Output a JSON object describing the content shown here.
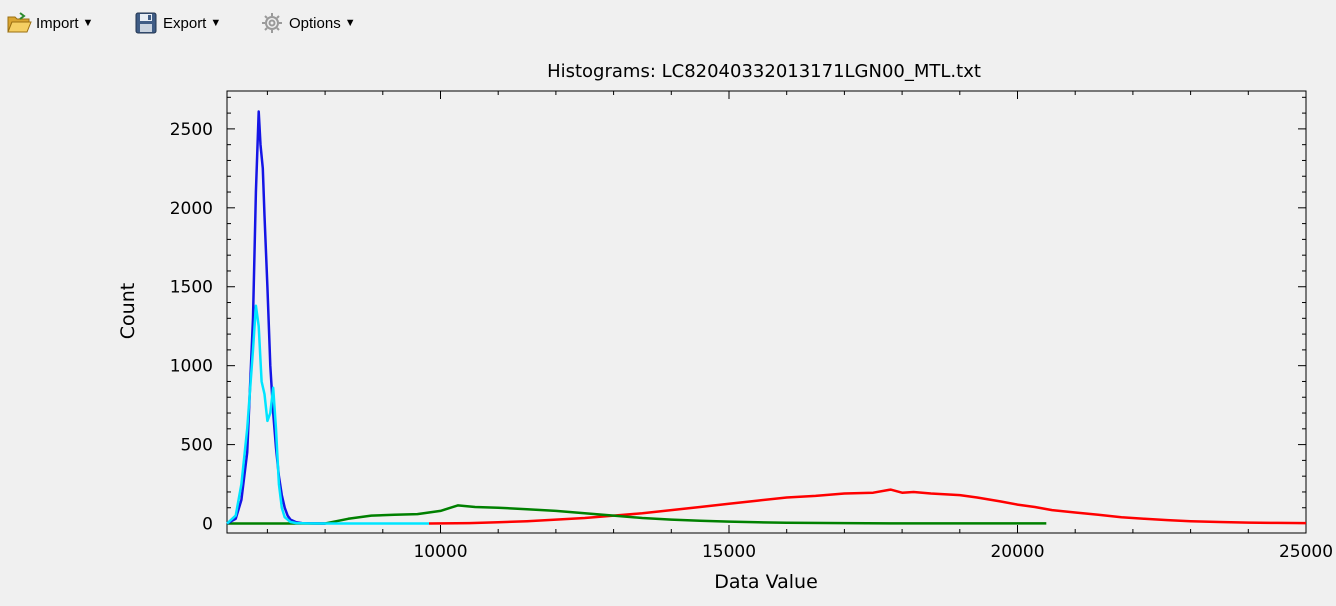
{
  "toolbar": {
    "import_label": "Import",
    "export_label": "Export",
    "options_label": "Options",
    "import_icon": "folder-open-icon",
    "export_icon": "floppy-disk-icon",
    "options_icon": "gear-icon"
  },
  "chart_data": {
    "type": "line",
    "title": "Histograms: LC82040332013171LGN00_MTL.txt",
    "xlabel": "Data Value",
    "ylabel": "Count",
    "xlim": [
      6300,
      25000
    ],
    "ylim": [
      -60,
      2740
    ],
    "xticks": [
      10000,
      15000,
      20000,
      25000
    ],
    "xtick_labels": [
      "10000",
      "15000",
      "20000",
      "25000"
    ],
    "yticks": [
      0,
      500,
      1000,
      1500,
      2000,
      2500
    ],
    "ytick_labels": [
      "0",
      "500",
      "1000",
      "1500",
      "2000",
      "2500"
    ],
    "grid": false,
    "legend": false,
    "series": [
      {
        "color": "#ff0000",
        "x": [
          9800,
          10500,
          11000,
          11500,
          12000,
          12500,
          13000,
          13500,
          14000,
          14500,
          15000,
          15500,
          16000,
          16500,
          17000,
          17500,
          17800,
          18000,
          18200,
          18500,
          19000,
          19300,
          19700,
          20000,
          20300,
          20600,
          21000,
          21400,
          21800,
          22200,
          22600,
          23000,
          23500,
          24000,
          24500,
          25000
        ],
        "y": [
          0,
          3,
          8,
          15,
          25,
          35,
          50,
          65,
          85,
          105,
          125,
          145,
          165,
          175,
          190,
          195,
          215,
          195,
          200,
          190,
          180,
          165,
          140,
          120,
          105,
          85,
          70,
          55,
          40,
          30,
          22,
          15,
          10,
          6,
          4,
          3
        ]
      },
      {
        "color": "#008000",
        "x": [
          6300,
          8000,
          8400,
          8800,
          9200,
          9600,
          10000,
          10300,
          10600,
          11000,
          11500,
          12000,
          12500,
          13000,
          13500,
          14000,
          14500,
          15000,
          15500,
          16000,
          17000,
          18000,
          19000,
          20000,
          20500
        ],
        "y": [
          0,
          0,
          30,
          50,
          55,
          60,
          80,
          115,
          105,
          100,
          90,
          80,
          65,
          50,
          35,
          25,
          18,
          12,
          8,
          5,
          3,
          1,
          1,
          1,
          1
        ]
      },
      {
        "color": "#1515e6",
        "x": [
          6300,
          6450,
          6550,
          6650,
          6750,
          6800,
          6850,
          6880,
          6920,
          6950,
          7000,
          7050,
          7100,
          7150,
          7200,
          7250,
          7300,
          7350,
          7400,
          7500,
          7600,
          7800,
          8000
        ],
        "y": [
          0,
          30,
          150,
          450,
          1300,
          2100,
          2610,
          2400,
          2250,
          1950,
          1500,
          1000,
          700,
          480,
          300,
          180,
          100,
          50,
          25,
          8,
          3,
          1,
          0
        ]
      },
      {
        "color": "#00e5ff",
        "x": [
          6300,
          6450,
          6550,
          6650,
          6750,
          6800,
          6850,
          6900,
          6950,
          7000,
          7050,
          7100,
          7150,
          7200,
          7250,
          7300,
          7400,
          7500,
          7700,
          8000,
          9000,
          9800
        ],
        "y": [
          0,
          50,
          250,
          600,
          1100,
          1380,
          1250,
          900,
          820,
          650,
          700,
          860,
          600,
          250,
          100,
          40,
          10,
          3,
          1,
          0,
          0,
          0
        ]
      }
    ]
  }
}
